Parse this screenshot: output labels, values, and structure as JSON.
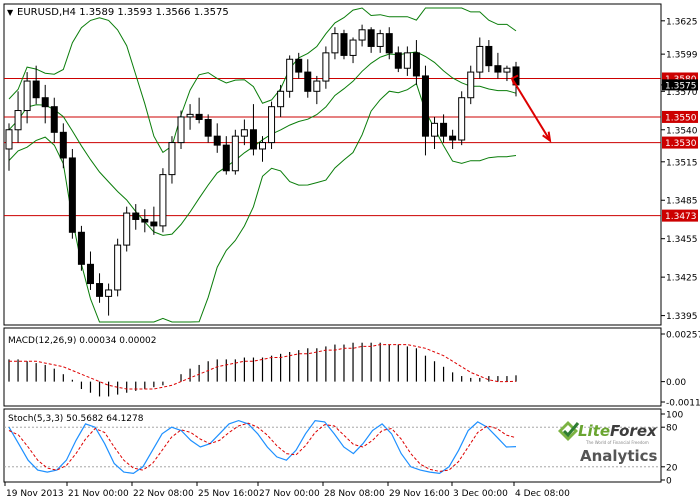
{
  "header": {
    "marker": "▼",
    "text": "EURUSD,H4  1.3589 1.3593 1.3566 1.3575"
  },
  "main_price_axis": [
    "1.3625",
    "1.3599",
    "1.3575",
    "1.3570",
    "1.3540",
    "1.3515",
    "1.3485",
    "1.3455",
    "1.3425",
    "1.3395"
  ],
  "levels": [
    {
      "label": "1.3580",
      "value": 1.358
    },
    {
      "label": "1.3550",
      "value": 1.355
    },
    {
      "label": "1.3530",
      "value": 1.353
    },
    {
      "label": "1.3473",
      "value": 1.3473
    }
  ],
  "current_price_label": "1.3575",
  "macd": {
    "label": "MACD(12,26,9) 0.00034 0.00002",
    "axis": [
      "0.00257",
      "0.00",
      "-0.0011"
    ]
  },
  "stoch": {
    "label": "Stoch(5,3,3) 50.5682 64.1278",
    "axis": [
      "100",
      "80",
      "20",
      "0"
    ]
  },
  "time_axis": [
    "19 Nov 2013",
    "21 Nov 00:00",
    "22 Nov 08:00",
    "25 Nov 16:00",
    "27 Nov 00:00",
    "28 Nov 08:00",
    "29 Nov 16:00",
    "3 Dec 00:00",
    "4 Dec 08:00"
  ],
  "brand": {
    "name_part1": "Lite",
    "name_part2": "Forex",
    "tagline": "The World of Financial Freedom",
    "sub": "Analytics"
  },
  "colors": {
    "level_line": "#cc0000",
    "bollinger": "#0a7d0a",
    "forecast_arrow": "#dd0000",
    "macd_signal": "#dd0000",
    "stoch_main": "#1e90ff",
    "stoch_signal": "#dd0000",
    "brand_green": "#6aa531"
  },
  "chart_data": [
    {
      "type": "candlestick",
      "symbol": "EURUSD",
      "timeframe": "H4",
      "title": "EURUSD,H4  1.3589 1.3593 1.3566 1.3575",
      "ohlc_last": {
        "open": 1.3589,
        "high": 1.3593,
        "low": 1.3566,
        "close": 1.3575
      },
      "ylim": [
        1.339,
        1.3635
      ],
      "candles": [
        [
          1.3525,
          1.3545,
          1.3508,
          1.354
        ],
        [
          1.354,
          1.357,
          1.353,
          1.3555
        ],
        [
          1.3555,
          1.3585,
          1.3545,
          1.3578
        ],
        [
          1.3578,
          1.359,
          1.356,
          1.3565
        ],
        [
          1.3565,
          1.3575,
          1.3545,
          1.3558
        ],
        [
          1.3558,
          1.3565,
          1.353,
          1.3538
        ],
        [
          1.3538,
          1.3545,
          1.351,
          1.3518
        ],
        [
          1.3518,
          1.3525,
          1.3455,
          1.346
        ],
        [
          1.346,
          1.3465,
          1.343,
          1.3435
        ],
        [
          1.3435,
          1.3445,
          1.3415,
          1.342
        ],
        [
          1.342,
          1.3428,
          1.3405,
          1.341
        ],
        [
          1.341,
          1.342,
          1.3395,
          1.3415
        ],
        [
          1.3415,
          1.3455,
          1.341,
          1.345
        ],
        [
          1.345,
          1.348,
          1.3445,
          1.3475
        ],
        [
          1.3475,
          1.3482,
          1.3462,
          1.347
        ],
        [
          1.347,
          1.3478,
          1.346,
          1.3468
        ],
        [
          1.3468,
          1.348,
          1.3458,
          1.3465
        ],
        [
          1.3465,
          1.351,
          1.346,
          1.3505
        ],
        [
          1.3505,
          1.3535,
          1.3498,
          1.353
        ],
        [
          1.353,
          1.3555,
          1.3525,
          1.355
        ],
        [
          1.355,
          1.356,
          1.354,
          1.3552
        ],
        [
          1.3552,
          1.3565,
          1.3545,
          1.3548
        ],
        [
          1.3548,
          1.3552,
          1.353,
          1.3535
        ],
        [
          1.3535,
          1.3545,
          1.3522,
          1.3528
        ],
        [
          1.3528,
          1.3535,
          1.3505,
          1.3508
        ],
        [
          1.3508,
          1.354,
          1.3505,
          1.3535
        ],
        [
          1.3535,
          1.3548,
          1.3528,
          1.354
        ],
        [
          1.354,
          1.356,
          1.352,
          1.3525
        ],
        [
          1.3525,
          1.3535,
          1.3515,
          1.353
        ],
        [
          1.353,
          1.3562,
          1.3525,
          1.3558
        ],
        [
          1.3558,
          1.3575,
          1.355,
          1.357
        ],
        [
          1.357,
          1.3598,
          1.3565,
          1.3595
        ],
        [
          1.3595,
          1.36,
          1.358,
          1.3585
        ],
        [
          1.3585,
          1.3595,
          1.3565,
          1.357
        ],
        [
          1.357,
          1.3582,
          1.356,
          1.3578
        ],
        [
          1.3578,
          1.3605,
          1.3572,
          1.36
        ],
        [
          1.36,
          1.362,
          1.3595,
          1.3615
        ],
        [
          1.3615,
          1.3618,
          1.3595,
          1.3598
        ],
        [
          1.3598,
          1.3612,
          1.3592,
          1.361
        ],
        [
          1.361,
          1.3622,
          1.3605,
          1.3618
        ],
        [
          1.3618,
          1.362,
          1.36,
          1.3605
        ],
        [
          1.3605,
          1.3618,
          1.36,
          1.3615
        ],
        [
          1.3615,
          1.362,
          1.3595,
          1.36
        ],
        [
          1.36,
          1.3605,
          1.3585,
          1.3588
        ],
        [
          1.3588,
          1.3605,
          1.3582,
          1.36
        ],
        [
          1.36,
          1.361,
          1.3575,
          1.3582
        ],
        [
          1.3582,
          1.359,
          1.352,
          1.3535
        ],
        [
          1.3535,
          1.355,
          1.3525,
          1.3545
        ],
        [
          1.3545,
          1.3552,
          1.353,
          1.3535
        ],
        [
          1.3535,
          1.354,
          1.3525,
          1.3532
        ],
        [
          1.3532,
          1.357,
          1.3528,
          1.3565
        ],
        [
          1.3565,
          1.359,
          1.356,
          1.3585
        ],
        [
          1.3585,
          1.3612,
          1.358,
          1.3605
        ],
        [
          1.3605,
          1.361,
          1.3585,
          1.359
        ],
        [
          1.359,
          1.36,
          1.358,
          1.3585
        ],
        [
          1.3585,
          1.359,
          1.3578,
          1.3588
        ],
        [
          1.3589,
          1.3593,
          1.3566,
          1.3575
        ]
      ],
      "bollinger_bands": true,
      "horizontal_levels": [
        1.358,
        1.355,
        1.353,
        1.3473
      ],
      "forecast_arrow": {
        "from": 1.358,
        "to": 1.353,
        "direction": "down"
      },
      "x_tick_labels": [
        "19 Nov 2013",
        "21 Nov 00:00",
        "22 Nov 08:00",
        "25 Nov 16:00",
        "27 Nov 00:00",
        "28 Nov 08:00",
        "29 Nov 16:00",
        "3 Dec 00:00",
        "4 Dec 08:00"
      ],
      "y_tick_labels": [
        "1.3625",
        "1.3599",
        "1.3570",
        "1.3540",
        "1.3515",
        "1.3485",
        "1.3455",
        "1.3425",
        "1.3395"
      ]
    },
    {
      "type": "bar",
      "title": "MACD(12,26,9) 0.00034 0.00002",
      "ylim": [
        -0.0011,
        0.00257
      ],
      "values": [
        0.0012,
        0.0012,
        0.0011,
        0.001,
        0.0009,
        0.0007,
        0.0004,
        0.0001,
        -0.0004,
        -0.0006,
        -0.0008,
        -0.0008,
        -0.0007,
        -0.0006,
        -0.0005,
        -0.0004,
        -0.0003,
        -0.0002,
        0.0,
        0.0004,
        0.0007,
        0.0009,
        0.0011,
        0.0012,
        0.0012,
        0.0012,
        0.0013,
        0.0013,
        0.0013,
        0.0014,
        0.0015,
        0.0016,
        0.0017,
        0.0018,
        0.0018,
        0.0019,
        0.002,
        0.002,
        0.0021,
        0.0021,
        0.0021,
        0.0021,
        0.002,
        0.002,
        0.0019,
        0.0018,
        0.0014,
        0.0011,
        0.0008,
        0.0005,
        0.0003,
        0.0002,
        0.0002,
        0.0003,
        0.0003,
        0.0003,
        0.00034
      ],
      "signal": [
        0.0011,
        0.0011,
        0.0011,
        0.0011,
        0.001,
        0.0009,
        0.0008,
        0.0006,
        0.0004,
        0.0002,
        0.0,
        -0.0002,
        -0.0003,
        -0.0004,
        -0.0004,
        -0.0004,
        -0.0004,
        -0.0003,
        -0.0002,
        0.0,
        0.0002,
        0.0004,
        0.0006,
        0.0008,
        0.0009,
        0.001,
        0.0011,
        0.0011,
        0.0012,
        0.0013,
        0.0013,
        0.0014,
        0.0015,
        0.0015,
        0.0016,
        0.0017,
        0.0017,
        0.0018,
        0.0018,
        0.0019,
        0.0019,
        0.002,
        0.002,
        0.002,
        0.002,
        0.0019,
        0.0018,
        0.0016,
        0.0014,
        0.0011,
        0.0008,
        0.0005,
        0.0003,
        0.0001,
        0.0,
        0.0,
        2e-05
      ],
      "y_tick_labels": [
        "0.00257",
        "0.00",
        "-0.0011"
      ]
    },
    {
      "type": "line",
      "title": "Stoch(5,3,3) 50.5682 64.1278",
      "ylim": [
        0,
        100
      ],
      "levels": [
        80,
        20
      ],
      "series": [
        {
          "values": [
            80,
            55,
            30,
            15,
            12,
            15,
            30,
            60,
            85,
            80,
            55,
            25,
            12,
            10,
            20,
            45,
            70,
            80,
            75,
            60,
            50,
            55,
            70,
            85,
            90,
            85,
            70,
            50,
            35,
            30,
            45,
            70,
            90,
            88,
            70,
            50,
            40,
            55,
            75,
            85,
            70,
            40,
            20,
            15,
            12,
            10,
            20,
            45,
            75,
            88,
            80,
            65,
            50,
            50.5682
          ]
        },
        {
          "values": [
            75,
            68,
            50,
            30,
            18,
            15,
            22,
            40,
            62,
            78,
            72,
            50,
            30,
            18,
            15,
            25,
            45,
            65,
            76,
            72,
            62,
            55,
            60,
            72,
            82,
            86,
            80,
            68,
            52,
            40,
            38,
            52,
            72,
            84,
            82,
            68,
            54,
            50,
            60,
            75,
            78,
            62,
            40,
            24,
            16,
            13,
            15,
            28,
            50,
            72,
            82,
            78,
            68,
            64.1278
          ]
        }
      ],
      "y_tick_labels": [
        "100",
        "80",
        "20",
        "0"
      ]
    }
  ]
}
